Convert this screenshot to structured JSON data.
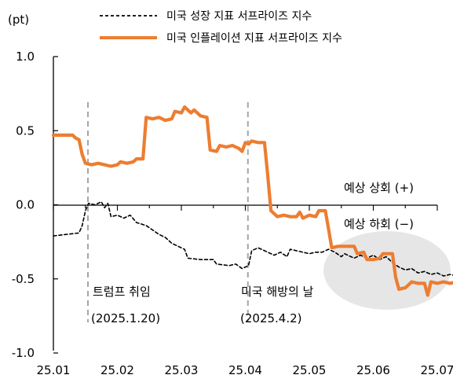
{
  "chart_data": {
    "type": "line",
    "ylabel": "(pt)",
    "ylim": [
      -1.0,
      1.0
    ],
    "y_ticks": [
      "1.0",
      "0.5",
      "0.0",
      "-0.5",
      "-1.0"
    ],
    "y_tick_values": [
      1.0,
      0.5,
      0.0,
      -0.5,
      -1.0
    ],
    "x_ticks": [
      "25.01",
      "25.02",
      "25.03",
      "25.04",
      "25.05",
      "25.06",
      "25.07"
    ],
    "x_tick_values": [
      0,
      1,
      2,
      3,
      4,
      5,
      6
    ],
    "xlim": [
      0,
      6.45
    ],
    "x_unit_note": "",
    "grid": false,
    "legend_position": "top",
    "series": [
      {
        "name": "미국 성장 지표 서프라이즈 지수",
        "color": "#000000",
        "style": "dashed",
        "points": [
          [
            0.0,
            -0.21
          ],
          [
            0.2,
            -0.2
          ],
          [
            0.4,
            -0.19
          ],
          [
            0.45,
            -0.14
          ],
          [
            0.5,
            -0.04
          ],
          [
            0.55,
            0.01
          ],
          [
            0.65,
            0.0
          ],
          [
            0.75,
            0.02
          ],
          [
            0.8,
            -0.02
          ],
          [
            0.85,
            0.01
          ],
          [
            0.9,
            -0.08
          ],
          [
            1.0,
            -0.07
          ],
          [
            1.1,
            -0.09
          ],
          [
            1.2,
            -0.07
          ],
          [
            1.3,
            -0.12
          ],
          [
            1.45,
            -0.14
          ],
          [
            1.55,
            -0.17
          ],
          [
            1.65,
            -0.2
          ],
          [
            1.75,
            -0.22
          ],
          [
            1.85,
            -0.26
          ],
          [
            1.95,
            -0.28
          ],
          [
            2.05,
            -0.3
          ],
          [
            2.1,
            -0.36
          ],
          [
            2.3,
            -0.37
          ],
          [
            2.5,
            -0.37
          ],
          [
            2.55,
            -0.4
          ],
          [
            2.75,
            -0.41
          ],
          [
            2.85,
            -0.4
          ],
          [
            2.95,
            -0.43
          ],
          [
            3.05,
            -0.41
          ],
          [
            3.1,
            -0.31
          ],
          [
            3.2,
            -0.29
          ],
          [
            3.3,
            -0.31
          ],
          [
            3.45,
            -0.34
          ],
          [
            3.55,
            -0.32
          ],
          [
            3.65,
            -0.35
          ],
          [
            3.7,
            -0.3
          ],
          [
            3.9,
            -0.32
          ],
          [
            4.0,
            -0.33
          ],
          [
            4.1,
            -0.32
          ],
          [
            4.2,
            -0.32
          ],
          [
            4.3,
            -0.3
          ],
          [
            4.4,
            -0.32
          ],
          [
            4.5,
            -0.35
          ],
          [
            4.55,
            -0.33
          ],
          [
            4.7,
            -0.36
          ],
          [
            4.8,
            -0.34
          ],
          [
            4.9,
            -0.36
          ],
          [
            5.0,
            -0.34
          ],
          [
            5.1,
            -0.37
          ],
          [
            5.2,
            -0.35
          ],
          [
            5.3,
            -0.39
          ],
          [
            5.4,
            -0.42
          ],
          [
            5.5,
            -0.44
          ],
          [
            5.6,
            -0.43
          ],
          [
            5.7,
            -0.46
          ],
          [
            5.8,
            -0.45
          ],
          [
            5.9,
            -0.47
          ],
          [
            6.0,
            -0.46
          ],
          [
            6.1,
            -0.48
          ],
          [
            6.2,
            -0.47
          ],
          [
            6.3,
            -0.48
          ],
          [
            6.4,
            -0.47
          ]
        ]
      },
      {
        "name": "미국 인플레이션 지표 서프라이즈 지수",
        "color": "#ED7D31",
        "style": "solid",
        "points": [
          [
            0.0,
            0.47
          ],
          [
            0.3,
            0.47
          ],
          [
            0.35,
            0.45
          ],
          [
            0.4,
            0.44
          ],
          [
            0.45,
            0.34
          ],
          [
            0.5,
            0.28
          ],
          [
            0.6,
            0.27
          ],
          [
            0.7,
            0.28
          ],
          [
            0.8,
            0.27
          ],
          [
            0.9,
            0.26
          ],
          [
            1.0,
            0.27
          ],
          [
            1.05,
            0.29
          ],
          [
            1.15,
            0.28
          ],
          [
            1.25,
            0.29
          ],
          [
            1.3,
            0.31
          ],
          [
            1.4,
            0.31
          ],
          [
            1.45,
            0.59
          ],
          [
            1.55,
            0.58
          ],
          [
            1.65,
            0.59
          ],
          [
            1.75,
            0.57
          ],
          [
            1.85,
            0.58
          ],
          [
            1.9,
            0.63
          ],
          [
            2.0,
            0.62
          ],
          [
            2.05,
            0.66
          ],
          [
            2.15,
            0.62
          ],
          [
            2.2,
            0.64
          ],
          [
            2.3,
            0.6
          ],
          [
            2.4,
            0.59
          ],
          [
            2.45,
            0.37
          ],
          [
            2.55,
            0.36
          ],
          [
            2.6,
            0.4
          ],
          [
            2.7,
            0.39
          ],
          [
            2.8,
            0.4
          ],
          [
            2.9,
            0.38
          ],
          [
            2.95,
            0.36
          ],
          [
            3.0,
            0.42
          ],
          [
            3.05,
            0.41
          ],
          [
            3.1,
            0.43
          ],
          [
            3.2,
            0.42
          ],
          [
            3.3,
            0.42
          ],
          [
            3.35,
            0.2
          ],
          [
            3.4,
            -0.04
          ],
          [
            3.5,
            -0.08
          ],
          [
            3.6,
            -0.07
          ],
          [
            3.7,
            -0.08
          ],
          [
            3.8,
            -0.08
          ],
          [
            3.85,
            -0.05
          ],
          [
            3.9,
            -0.09
          ],
          [
            3.95,
            -0.08
          ],
          [
            4.0,
            -0.07
          ],
          [
            4.1,
            -0.08
          ],
          [
            4.15,
            -0.04
          ],
          [
            4.25,
            -0.04
          ],
          [
            4.3,
            -0.16
          ],
          [
            4.35,
            -0.29
          ],
          [
            4.45,
            -0.28
          ],
          [
            4.55,
            -0.28
          ],
          [
            4.7,
            -0.28
          ],
          [
            4.75,
            -0.33
          ],
          [
            4.85,
            -0.32
          ],
          [
            4.9,
            -0.37
          ],
          [
            5.0,
            -0.37
          ],
          [
            5.1,
            -0.36
          ],
          [
            5.15,
            -0.33
          ],
          [
            5.3,
            -0.33
          ],
          [
            5.35,
            -0.49
          ],
          [
            5.4,
            -0.57
          ],
          [
            5.5,
            -0.56
          ],
          [
            5.6,
            -0.52
          ],
          [
            5.7,
            -0.53
          ],
          [
            5.8,
            -0.53
          ],
          [
            5.85,
            -0.61
          ],
          [
            5.9,
            -0.52
          ],
          [
            6.0,
            -0.53
          ],
          [
            6.1,
            -0.52
          ],
          [
            6.2,
            -0.53
          ],
          [
            6.3,
            -0.52
          ],
          [
            6.4,
            -0.52
          ],
          [
            6.45,
            -0.51
          ]
        ]
      }
    ],
    "annotations": {
      "vlines": [
        {
          "x": 0.54,
          "label": "트럼프 취임",
          "date": "(2025.1.20)"
        },
        {
          "x": 3.04,
          "label": "미국 해방의 날",
          "date": "(2025.4.2)"
        }
      ],
      "region_up": "예상 상회 (+)",
      "region_down": "예상 하회 (−)",
      "highlight_color": "#E6E6E6"
    }
  }
}
